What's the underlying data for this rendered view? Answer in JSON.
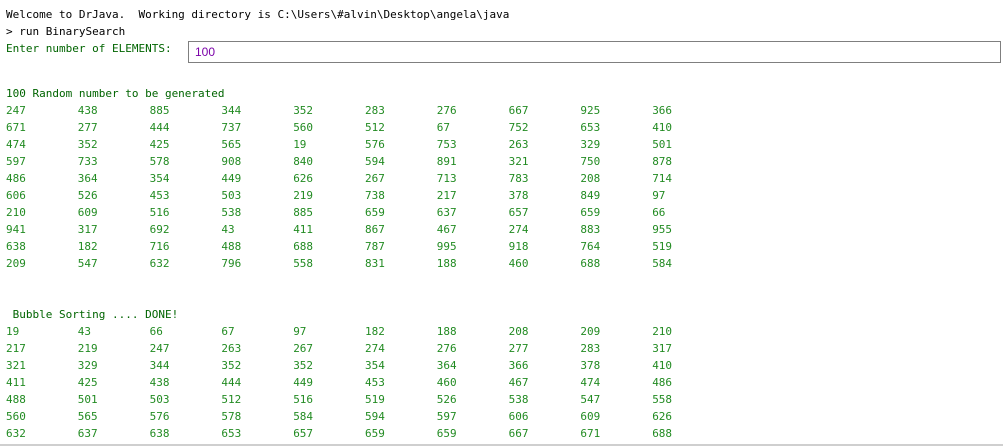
{
  "console": {
    "welcome_line": "Welcome to DrJava.  Working directory is C:\\Users\\#alvin\\Desktop\\angela\\java",
    "run_command": "> run BinarySearch",
    "input_prompt": "Enter number of ELEMENTS:",
    "input_value": "100",
    "random_heading": "100 Random number to be generated",
    "sorted_heading": " Bubble Sorting .... DONE!"
  },
  "random_numbers": [
    [
      "247",
      "438",
      "885",
      "344",
      "352",
      "283",
      "276",
      "667",
      "925",
      "366"
    ],
    [
      "671",
      "277",
      "444",
      "737",
      "560",
      "512",
      "67",
      "752",
      "653",
      "410"
    ],
    [
      "474",
      "352",
      "425",
      "565",
      "19",
      "576",
      "753",
      "263",
      "329",
      "501"
    ],
    [
      "597",
      "733",
      "578",
      "908",
      "840",
      "594",
      "891",
      "321",
      "750",
      "878"
    ],
    [
      "486",
      "364",
      "354",
      "449",
      "626",
      "267",
      "713",
      "783",
      "208",
      "714"
    ],
    [
      "606",
      "526",
      "453",
      "503",
      "219",
      "738",
      "217",
      "378",
      "849",
      "97"
    ],
    [
      "210",
      "609",
      "516",
      "538",
      "885",
      "659",
      "637",
      "657",
      "659",
      "66"
    ],
    [
      "941",
      "317",
      "692",
      "43",
      "411",
      "867",
      "467",
      "274",
      "883",
      "955"
    ],
    [
      "638",
      "182",
      "716",
      "488",
      "688",
      "787",
      "995",
      "918",
      "764",
      "519"
    ],
    [
      "209",
      "547",
      "632",
      "796",
      "558",
      "831",
      "188",
      "460",
      "688",
      "584"
    ]
  ],
  "sorted_numbers": [
    [
      "19",
      "43",
      "66",
      "67",
      "97",
      "182",
      "188",
      "208",
      "209",
      "210"
    ],
    [
      "217",
      "219",
      "247",
      "263",
      "267",
      "274",
      "276",
      "277",
      "283",
      "317"
    ],
    [
      "321",
      "329",
      "344",
      "352",
      "352",
      "354",
      "364",
      "366",
      "378",
      "410"
    ],
    [
      "411",
      "425",
      "438",
      "444",
      "449",
      "453",
      "460",
      "467",
      "474",
      "486"
    ],
    [
      "488",
      "501",
      "503",
      "512",
      "516",
      "519",
      "526",
      "538",
      "547",
      "558"
    ],
    [
      "560",
      "565",
      "576",
      "578",
      "584",
      "594",
      "597",
      "606",
      "609",
      "626"
    ],
    [
      "632",
      "637",
      "638",
      "653",
      "657",
      "659",
      "659",
      "667",
      "671",
      "688"
    ]
  ],
  "colors": {
    "output_text": "#228b22",
    "prompt_text": "#006400",
    "input_text": "#7a00a8",
    "system_text": "#000000"
  }
}
